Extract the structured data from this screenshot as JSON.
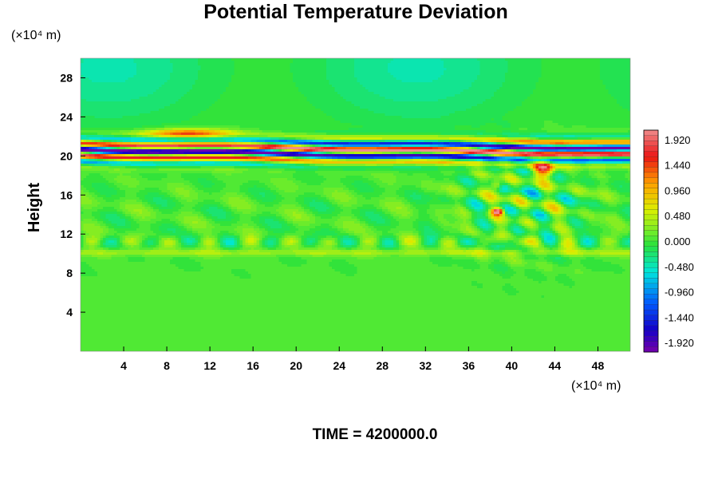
{
  "chart_data": {
    "type": "heatmap",
    "title": "Potential Temperature Deviation",
    "ylabel": "Height",
    "x_unit": "(×10⁴ m)",
    "y_unit": "(×10⁴ m)",
    "xlim": [
      0,
      51
    ],
    "ylim": [
      0,
      30
    ],
    "x_ticks": [
      4,
      8,
      12,
      16,
      20,
      24,
      28,
      32,
      36,
      40,
      44,
      48
    ],
    "y_ticks": [
      4,
      8,
      12,
      16,
      20,
      24,
      28
    ],
    "colorbar": {
      "ticks": [
        "1.920",
        "1.440",
        "0.960",
        "0.480",
        "0.000",
        "-0.480",
        "-0.960",
        "-1.440",
        "-1.920"
      ],
      "min": -2.1,
      "max": 2.1,
      "levels": 42
    },
    "time_label": "TIME = 4200000.0"
  }
}
